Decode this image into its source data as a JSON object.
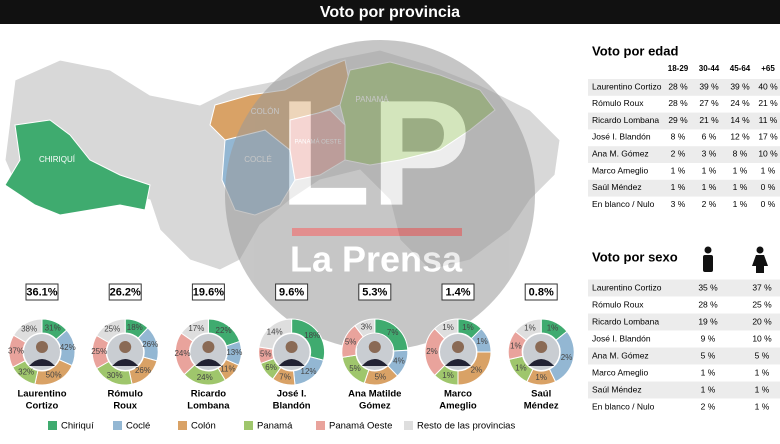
{
  "header": {
    "title": "Voto por provincia"
  },
  "map": {
    "labels": [
      "CHIRIQUÍ",
      "COCLÉ",
      "COLÓN",
      "PANAMÁ OESTE",
      "PANAMÁ"
    ]
  },
  "watermark": {
    "logo": "LP",
    "name": "La Prensa"
  },
  "regions": [
    {
      "name": "Chiriquí",
      "color": "#3fab6f"
    },
    {
      "name": "Coclé",
      "color": "#93b7d3"
    },
    {
      "name": "Colón",
      "color": "#d9a266"
    },
    {
      "name": "Panamá",
      "color": "#9fc66c"
    },
    {
      "name": "Panamá Oeste",
      "color": "#e9a39c"
    },
    {
      "name": "Resto de las provincias",
      "color": "#dedede"
    }
  ],
  "candidates": [
    {
      "name": [
        "Laurentino",
        "Cortizo"
      ],
      "total": "36.1%",
      "values": [
        31,
        42,
        50,
        32,
        37,
        38
      ],
      "value_labels": [
        "31%",
        "42%",
        "50%",
        "32%",
        "37%",
        "38%"
      ]
    },
    {
      "name": [
        "Rómulo",
        "Roux"
      ],
      "total": "26.2%",
      "values": [
        18,
        26,
        26,
        30,
        25,
        25
      ],
      "value_labels": [
        "18%",
        "26%",
        "26%",
        "30%",
        "25%",
        "25%"
      ]
    },
    {
      "name": [
        "Ricardo",
        "Lombana"
      ],
      "total": "19.6%",
      "values": [
        22,
        13,
        11,
        24,
        24,
        17
      ],
      "value_labels": [
        "22%",
        "13%",
        "11%",
        "24%",
        "24%",
        "17%"
      ]
    },
    {
      "name": [
        "José I.",
        "Blandón"
      ],
      "total": "9.6%",
      "values": [
        18,
        12,
        7,
        6,
        5,
        14
      ],
      "value_labels": [
        "18%",
        "12%",
        "7%",
        "6%",
        "5%",
        "14%"
      ]
    },
    {
      "name": [
        "Ana Matilde",
        "Gómez"
      ],
      "total": "5.3%",
      "values": [
        7,
        4,
        5,
        5,
        5,
        3
      ],
      "value_labels": [
        "7%",
        "4%",
        "5%",
        "5%",
        "5%",
        "3%"
      ]
    },
    {
      "name": [
        "Marco",
        "Ameglio"
      ],
      "total": "1.4%",
      "values": [
        1,
        1,
        2,
        1,
        2,
        1
      ],
      "value_labels": [
        "1%",
        "1%",
        "2%",
        "1%",
        "2%",
        "1%"
      ]
    },
    {
      "name": [
        "Saúl",
        "Méndez"
      ],
      "total": "0.8%",
      "values": [
        1,
        2,
        1,
        1,
        1,
        1
      ],
      "value_labels": [
        "1%",
        "2%",
        "1%",
        "1%",
        "1%",
        "1%"
      ]
    }
  ],
  "age_table": {
    "title": "Voto por edad",
    "columns": [
      "18-29",
      "30-44",
      "45-64",
      "+65"
    ],
    "rows": [
      {
        "name": "Laurentino Cortizo",
        "cells": [
          "28 %",
          "39 %",
          "39 %",
          "40 %"
        ]
      },
      {
        "name": "Rómulo Roux",
        "cells": [
          "28 %",
          "27 %",
          "24 %",
          "21 %"
        ]
      },
      {
        "name": "Ricardo Lombana",
        "cells": [
          "29 %",
          "21 %",
          "14 %",
          "11 %"
        ]
      },
      {
        "name": "José I. Blandón",
        "cells": [
          "8 %",
          "6 %",
          "12 %",
          "17 %"
        ]
      },
      {
        "name": "Ana M. Gómez",
        "cells": [
          "2 %",
          "3 %",
          "8 %",
          "10 %"
        ]
      },
      {
        "name": "Marco Ameglio",
        "cells": [
          "1 %",
          "1 %",
          "1 %",
          "1 %"
        ]
      },
      {
        "name": "Saúl Méndez",
        "cells": [
          "1 %",
          "1 %",
          "1 %",
          "0 %"
        ]
      },
      {
        "name": "En blanco / Nulo",
        "cells": [
          "3 %",
          "2 %",
          "1 %",
          "0 %"
        ]
      }
    ]
  },
  "sex_table": {
    "title": "Voto por sexo",
    "rows": [
      {
        "name": "Laurentino Cortizo",
        "cells": [
          "35 %",
          "37 %"
        ]
      },
      {
        "name": "Rómulo Roux",
        "cells": [
          "28 %",
          "25 %"
        ]
      },
      {
        "name": "Ricardo Lombana",
        "cells": [
          "19 %",
          "20 %"
        ]
      },
      {
        "name": "José I. Blandón",
        "cells": [
          "9 %",
          "10 %"
        ]
      },
      {
        "name": "Ana M. Gómez",
        "cells": [
          "5 %",
          "5 %"
        ]
      },
      {
        "name": "Marco Ameglio",
        "cells": [
          "1 %",
          "1 %"
        ]
      },
      {
        "name": "Saúl Méndez",
        "cells": [
          "1 %",
          "1 %"
        ]
      },
      {
        "name": "En blanco / Nulo",
        "cells": [
          "2 %",
          "1 %"
        ]
      }
    ]
  }
}
